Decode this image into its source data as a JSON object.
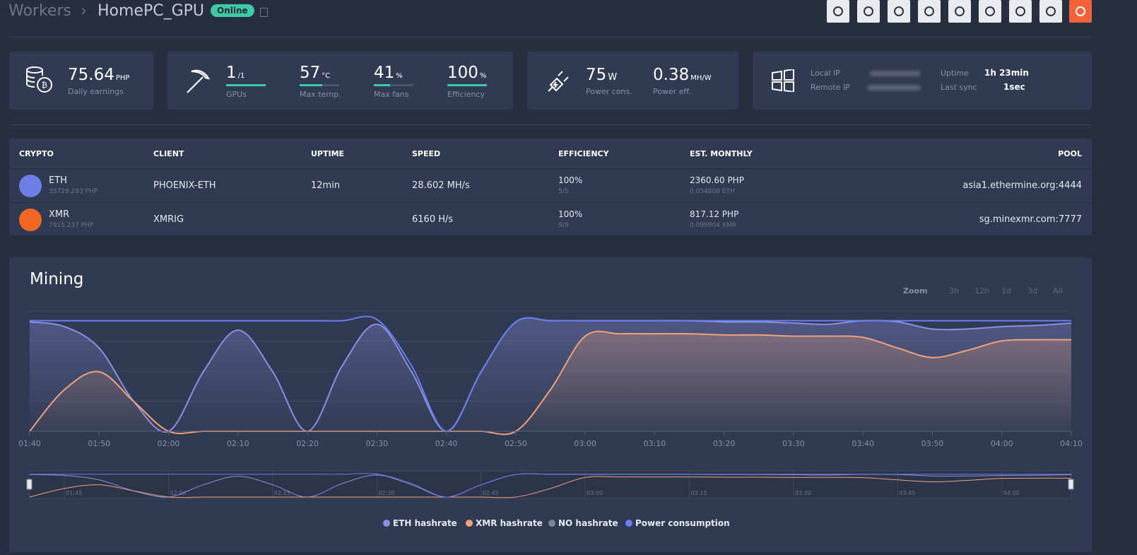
{
  "header": {
    "breadcrumb": "Workers",
    "title": "HomePC_GPU",
    "status": "Online"
  },
  "cards": {
    "earnings": {
      "value": "75.64",
      "unit": "PHP",
      "label": "Daily earnings"
    },
    "gpus": {
      "value": "1",
      "unit": "/1",
      "label": "GPUs"
    },
    "temp": {
      "value": 57,
      "unit": "°C",
      "label": "Max temp."
    },
    "fans": {
      "value": 41,
      "unit": "%",
      "label": "Max fans"
    },
    "efficiency": {
      "value": 100,
      "unit": "%",
      "label": "Efficiency"
    },
    "power": {
      "value": "75",
      "unit": "W",
      "label": "Power cons."
    },
    "power_eff": {
      "value": "0.38",
      "unit": "MH/W",
      "label": "Power eff."
    },
    "network": {
      "local_label": "Local IP",
      "remote_label": "Remote IP",
      "uptime_label": "Uptime",
      "uptime": "1h 23min",
      "sync_label": "Last sync",
      "sync": "1sec"
    }
  },
  "table": {
    "headers": [
      "CRYPTO",
      "CLIENT",
      "UPTIME",
      "SPEED",
      "EFFICIENCY",
      "EST. MONTHLY",
      "POOL"
    ],
    "rows": [
      [
        "ETH",
        "35729.293 PHP",
        "PHOENIX-ETH",
        "12min",
        "28.602 MH/s",
        "100%",
        "5/5",
        "2360.60 PHP",
        "0.054800 ETH",
        "asia1.ethermine.org:4444"
      ],
      [
        "XMR",
        "7915.237 PHP",
        "XMRIG",
        null,
        "6160 H/s",
        "100%",
        "9/9",
        "817.12 PHP",
        "0.099904 XMR",
        "sg.minexmr.com:7777"
      ]
    ]
  },
  "chart_data": {
    "type": "line",
    "title": "Mining",
    "zoom": [
      "Zoom",
      "3h",
      "12h",
      "1d",
      "3d",
      "All"
    ],
    "categories": [
      "01:40",
      null,
      "01:50",
      null,
      "02:00",
      null,
      "02:10",
      null,
      "02:20",
      null,
      "02:30",
      null,
      "02:40",
      null,
      "02:50",
      null,
      "03:00",
      null,
      "03:10",
      null,
      "03:20",
      null,
      "03:30",
      null,
      "03:40",
      null,
      "03:50",
      null,
      "04:00",
      null,
      "04:10"
    ],
    "navigator_ticks": [
      "01:45",
      "02:00",
      "02:15",
      "02:30",
      "02:45",
      "03:00",
      "03:15",
      "03:30",
      "03:45",
      "04:00"
    ],
    "series": [
      {
        "name": "ETH hashrate",
        "color": "#8a91e0",
        "values": [
          92,
          88,
          70,
          25,
          0,
          50,
          85,
          50,
          0,
          55,
          90,
          50,
          0,
          50,
          92,
          93,
          93,
          93,
          93,
          93,
          92,
          92,
          91,
          90,
          93,
          92,
          86,
          86,
          88,
          89,
          91
        ]
      },
      {
        "name": "XMR hashrate",
        "color": "#f0a27a",
        "values": [
          0,
          35,
          50,
          25,
          0,
          0,
          0,
          0,
          0,
          0,
          0,
          0,
          0,
          0,
          0,
          35,
          80,
          82,
          82,
          82,
          81,
          81,
          80,
          80,
          79,
          70,
          62,
          68,
          76,
          77,
          77
        ]
      },
      {
        "name": "NO hashrate",
        "color": "#7f8590",
        "values": [
          null,
          null,
          null,
          null,
          null,
          null,
          null,
          null,
          null,
          null,
          null,
          null,
          null,
          null,
          null,
          null,
          null,
          null,
          null,
          null,
          null,
          null,
          null,
          null,
          null,
          null,
          null,
          null,
          null,
          null,
          null
        ]
      },
      {
        "name": "Power consumption",
        "color": "#6b7ff0",
        "values": [
          93,
          93,
          93,
          93,
          93,
          93,
          93,
          93,
          93,
          93,
          94,
          55,
          0,
          50,
          92,
          93,
          93,
          93,
          93,
          93,
          93,
          93,
          93,
          93,
          93,
          93,
          93,
          93,
          93,
          93,
          93
        ]
      }
    ]
  }
}
